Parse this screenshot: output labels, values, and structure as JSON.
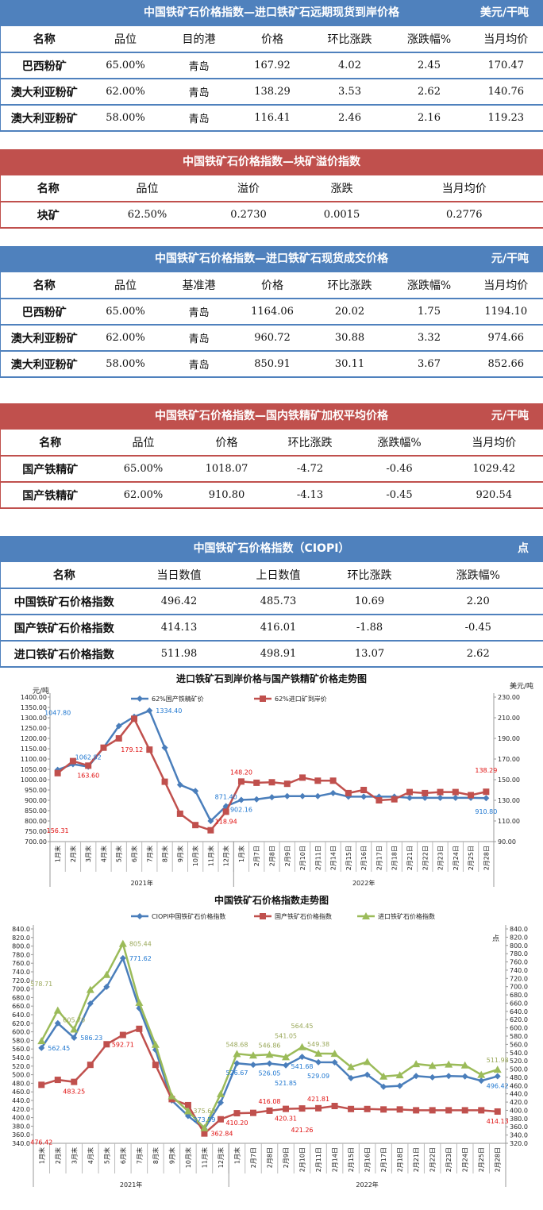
{
  "colors": {
    "blue_header": "#4f81bd",
    "red_header": "#c0504d",
    "series_blue": "#4a7ebb",
    "series_red": "#c0504d",
    "series_green": "#9bbb59",
    "label_blue": "#1f77d0",
    "label_red": "#e01010",
    "label_green": "#9aa85a"
  },
  "tables": [
    {
      "id": "import-forward",
      "theme": "blue",
      "title": "中国铁矿石价格指数—进口铁矿石远期现货到岸价格",
      "unit": "美元/干吨",
      "columns": [
        "名称",
        "品位",
        "目的港",
        "价格",
        "环比涨跌",
        "涨跌幅%",
        "当月均价"
      ],
      "rows": [
        [
          "巴西粉矿",
          "65.00%",
          "青岛",
          "167.92",
          "4.02",
          "2.45",
          "170.47"
        ],
        [
          "澳大利亚粉矿",
          "62.00%",
          "青岛",
          "138.29",
          "3.53",
          "2.62",
          "140.76"
        ],
        [
          "澳大利亚粉矿",
          "58.00%",
          "青岛",
          "116.41",
          "2.46",
          "2.16",
          "119.23"
        ]
      ]
    },
    {
      "id": "lump-premium",
      "theme": "red",
      "title": "中国铁矿石价格指数—块矿溢价指数",
      "unit": "",
      "columns": [
        "名称",
        "品位",
        "溢价",
        "涨跌",
        "当月均价"
      ],
      "rows": [
        [
          "块矿",
          "62.50%",
          "0.2730",
          "0.0015",
          "0.2776"
        ]
      ]
    },
    {
      "id": "import-spot",
      "theme": "blue",
      "title": "中国铁矿石价格指数—进口铁矿石现货成交价格",
      "unit": "元/干吨",
      "columns": [
        "名称",
        "品位",
        "基准港",
        "价格",
        "环比涨跌",
        "涨跌幅%",
        "当月均价"
      ],
      "rows": [
        [
          "巴西粉矿",
          "65.00%",
          "青岛",
          "1164.06",
          "20.02",
          "1.75",
          "1194.10"
        ],
        [
          "澳大利亚粉矿",
          "62.00%",
          "青岛",
          "960.72",
          "30.88",
          "3.32",
          "974.66"
        ],
        [
          "澳大利亚粉矿",
          "58.00%",
          "青岛",
          "850.91",
          "30.11",
          "3.67",
          "852.66"
        ]
      ]
    },
    {
      "id": "domestic-concentrate",
      "theme": "red",
      "title": "中国铁矿石价格指数—国内铁精矿加权平均价格",
      "unit": "元/干吨",
      "columns": [
        "名称",
        "品位",
        "价格",
        "环比涨跌",
        "涨跌幅%",
        "当月均价"
      ],
      "rows": [
        [
          "国产铁精矿",
          "65.00%",
          "1018.07",
          "-4.72",
          "-0.46",
          "1029.42"
        ],
        [
          "国产铁精矿",
          "62.00%",
          "910.80",
          "-4.13",
          "-0.45",
          "920.54"
        ]
      ]
    },
    {
      "id": "ciopi",
      "theme": "blue",
      "title": "中国铁矿石价格指数（CIOPI）",
      "unit": "点",
      "columns": [
        "名称",
        "当日数值",
        "上日数值",
        "环比涨跌",
        "涨跌幅%"
      ],
      "rows": [
        [
          "中国铁矿石价格指数",
          "496.42",
          "485.73",
          "10.69",
          "2.20"
        ],
        [
          "国产铁矿石价格指数",
          "414.13",
          "416.01",
          "-1.88",
          "-0.45"
        ],
        [
          "进口铁矿石价格指数",
          "511.98",
          "498.91",
          "13.07",
          "2.62"
        ]
      ]
    }
  ],
  "chart_data": [
    {
      "type": "line",
      "title": "进口铁矿石到岸价格与国产铁精矿价格走势图",
      "ylabel": "元/吨",
      "y2label": "美元/吨",
      "ylim": [
        700,
        1400
      ],
      "y2lim": [
        90,
        230
      ],
      "ystep": 50,
      "y2step": 20,
      "categories": [
        "1月末",
        "2月末",
        "3月末",
        "4月末",
        "5月末",
        "6月末",
        "7月末",
        "8月末",
        "9月末",
        "10月末",
        "11月末",
        "12月末",
        "1月末",
        "2月7日",
        "2月8日",
        "2月9日",
        "2月10日",
        "2月11日",
        "2月14日",
        "2月15日",
        "2月16日",
        "2月17日",
        "2月18日",
        "2月21日",
        "2月22日",
        "2月23日",
        "2月24日",
        "2月25日",
        "2月28日"
      ],
      "groups": [
        {
          "label": "2021年",
          "count": 12
        },
        {
          "label": "2022年",
          "count": 17
        }
      ],
      "legend": "top",
      "series": [
        {
          "name": "62%国产铁精矿价",
          "axis": "left",
          "marker": "diamond",
          "color": "#4a7ebb",
          "values": [
            1047.8,
            1075,
            1062.82,
            1155,
            1260,
            1305,
            1334.4,
            1155,
            975,
            945,
            800,
            871.4,
            902.16,
            905,
            915,
            920,
            920,
            920,
            935,
            918,
            918,
            918,
            918,
            912,
            912,
            912,
            912,
            912,
            910.8
          ]
        },
        {
          "name": "62%进口矿到岸价",
          "axis": "right",
          "marker": "square",
          "color": "#c0504d",
          "values": [
            156.31,
            168,
            163.6,
            181,
            190,
            209,
            179.12,
            148,
            117,
            106,
            101,
            118.94,
            148.2,
            147,
            147.5,
            146,
            152,
            149,
            149,
            137,
            140,
            130,
            131,
            138,
            137,
            138,
            138,
            135,
            138.29
          ]
        }
      ],
      "labels": [
        {
          "s": 0,
          "i": 0,
          "text": "1047.80",
          "pos": "above"
        },
        {
          "s": 0,
          "i": 2,
          "text": "1062.82",
          "pos": "above"
        },
        {
          "s": 0,
          "i": 6,
          "text": "1334.40",
          "pos": "right"
        },
        {
          "s": 0,
          "i": 11,
          "text": "871.40",
          "pos": "above"
        },
        {
          "s": 0,
          "i": 12,
          "text": "902.16",
          "pos": "below"
        },
        {
          "s": 0,
          "i": 28,
          "text": "910.80",
          "pos": "below"
        },
        {
          "s": 1,
          "i": 0,
          "text": "156.31",
          "pos": "below"
        },
        {
          "s": 1,
          "i": 2,
          "text": "163.60",
          "pos": "below"
        },
        {
          "s": 1,
          "i": 6,
          "text": "179.12",
          "pos": "left"
        },
        {
          "s": 1,
          "i": 11,
          "text": "118.94",
          "pos": "below"
        },
        {
          "s": 1,
          "i": 12,
          "text": "148.20",
          "pos": "above"
        },
        {
          "s": 1,
          "i": 28,
          "text": "138.29",
          "pos": "above"
        }
      ]
    },
    {
      "type": "line",
      "title": "中国铁矿石价格指数走势图",
      "ylabel": "",
      "y2label": "点",
      "ylim": [
        340,
        840
      ],
      "y2lim": [
        320,
        840
      ],
      "ystep": 20,
      "y2step": 20,
      "categories": [
        "1月末",
        "2月末",
        "3月末",
        "4月末",
        "5月末",
        "6月末",
        "7月末",
        "8月末",
        "9月末",
        "10月末",
        "11月末",
        "12月末",
        "1月末",
        "2月7日",
        "2月8日",
        "2月9日",
        "2月10日",
        "2月11日",
        "2月14日",
        "2月15日",
        "2月16日",
        "2月17日",
        "2月18日",
        "2月21日",
        "2月22日",
        "2月23日",
        "2月24日",
        "2月25日",
        "2月28日"
      ],
      "groups": [
        {
          "label": "2021年",
          "count": 12
        },
        {
          "label": "2022年",
          "count": 17
        }
      ],
      "legend": "top",
      "series": [
        {
          "name": "CIOPI中国铁矿石价格指数",
          "axis": "left",
          "marker": "diamond",
          "color": "#4a7ebb",
          "values": [
            562.45,
            620,
            586.23,
            666,
            705,
            771.62,
            655,
            558,
            440,
            404,
            373.59,
            435,
            526.67,
            523,
            526.05,
            521.85,
            541.68,
            529.09,
            529,
            492,
            500,
            472,
            474,
            497,
            494,
            497,
            496,
            486,
            496.42
          ]
        },
        {
          "name": "国产铁矿石价格指数",
          "axis": "left",
          "marker": "square",
          "color": "#c0504d",
          "values": [
            476.42,
            488,
            483.25,
            523,
            571,
            592.71,
            607,
            523,
            443,
            429,
            362.84,
            396,
            410.2,
            411,
            416.08,
            420.31,
            421.26,
            421.81,
            427,
            420,
            420,
            419,
            419,
            417,
            417,
            417,
            417,
            417,
            414.13
          ]
        },
        {
          "name": "进口铁矿石价格指数",
          "axis": "left",
          "marker": "triangle",
          "color": "#9bbb59",
          "values": [
            578.71,
            650,
            605.7,
            698,
            733,
            805.44,
            668,
            570,
            450,
            415,
            375.63,
            455,
            548.68,
            545,
            546.86,
            541.05,
            564.45,
            549.38,
            549,
            518,
            530,
            496,
            499,
            525,
            521,
            524,
            522,
            500,
            511.98
          ]
        }
      ],
      "labels": [
        {
          "s": 0,
          "i": 0,
          "text": "562.45",
          "pos": "right"
        },
        {
          "s": 0,
          "i": 2,
          "text": "586.23",
          "pos": "right"
        },
        {
          "s": 0,
          "i": 5,
          "text": "771.62",
          "pos": "right"
        },
        {
          "s": 0,
          "i": 10,
          "text": "373.59",
          "pos": "above"
        },
        {
          "s": 0,
          "i": 12,
          "text": "526.67",
          "pos": "below"
        },
        {
          "s": 0,
          "i": 14,
          "text": "526.05",
          "pos": "below"
        },
        {
          "s": 0,
          "i": 15,
          "text": "521.85",
          "pos": "below"
        },
        {
          "s": 0,
          "i": 16,
          "text": "541.68",
          "pos": "below"
        },
        {
          "s": 0,
          "i": 17,
          "text": "529.09",
          "pos": "below"
        },
        {
          "s": 0,
          "i": 28,
          "text": "496.42",
          "pos": "below"
        },
        {
          "s": 1,
          "i": 0,
          "text": "476.42",
          "pos": "below"
        },
        {
          "s": 1,
          "i": 2,
          "text": "483.25",
          "pos": "below"
        },
        {
          "s": 1,
          "i": 5,
          "text": "592.71",
          "pos": "below"
        },
        {
          "s": 1,
          "i": 10,
          "text": "362.84",
          "pos": "right"
        },
        {
          "s": 1,
          "i": 12,
          "text": "410.20",
          "pos": "below"
        },
        {
          "s": 1,
          "i": 14,
          "text": "416.08",
          "pos": "above"
        },
        {
          "s": 1,
          "i": 15,
          "text": "420.31",
          "pos": "below"
        },
        {
          "s": 1,
          "i": 16,
          "text": "421.26",
          "pos": "below"
        },
        {
          "s": 1,
          "i": 17,
          "text": "421.81",
          "pos": "above"
        },
        {
          "s": 1,
          "i": 28,
          "text": "414.13",
          "pos": "below"
        },
        {
          "s": 2,
          "i": 0,
          "text": "578.71",
          "pos": "above"
        },
        {
          "s": 2,
          "i": 2,
          "text": "605.70",
          "pos": "above"
        },
        {
          "s": 2,
          "i": 5,
          "text": "805.44",
          "pos": "right"
        },
        {
          "s": 2,
          "i": 10,
          "text": "375.63",
          "pos": "above"
        },
        {
          "s": 2,
          "i": 12,
          "text": "548.68",
          "pos": "above"
        },
        {
          "s": 2,
          "i": 14,
          "text": "546.86",
          "pos": "above"
        },
        {
          "s": 2,
          "i": 15,
          "text": "541.05",
          "pos": "above"
        },
        {
          "s": 2,
          "i": 16,
          "text": "564.45",
          "pos": "above"
        },
        {
          "s": 2,
          "i": 17,
          "text": "549.38",
          "pos": "above"
        },
        {
          "s": 2,
          "i": 28,
          "text": "511.98",
          "pos": "above"
        }
      ]
    }
  ]
}
